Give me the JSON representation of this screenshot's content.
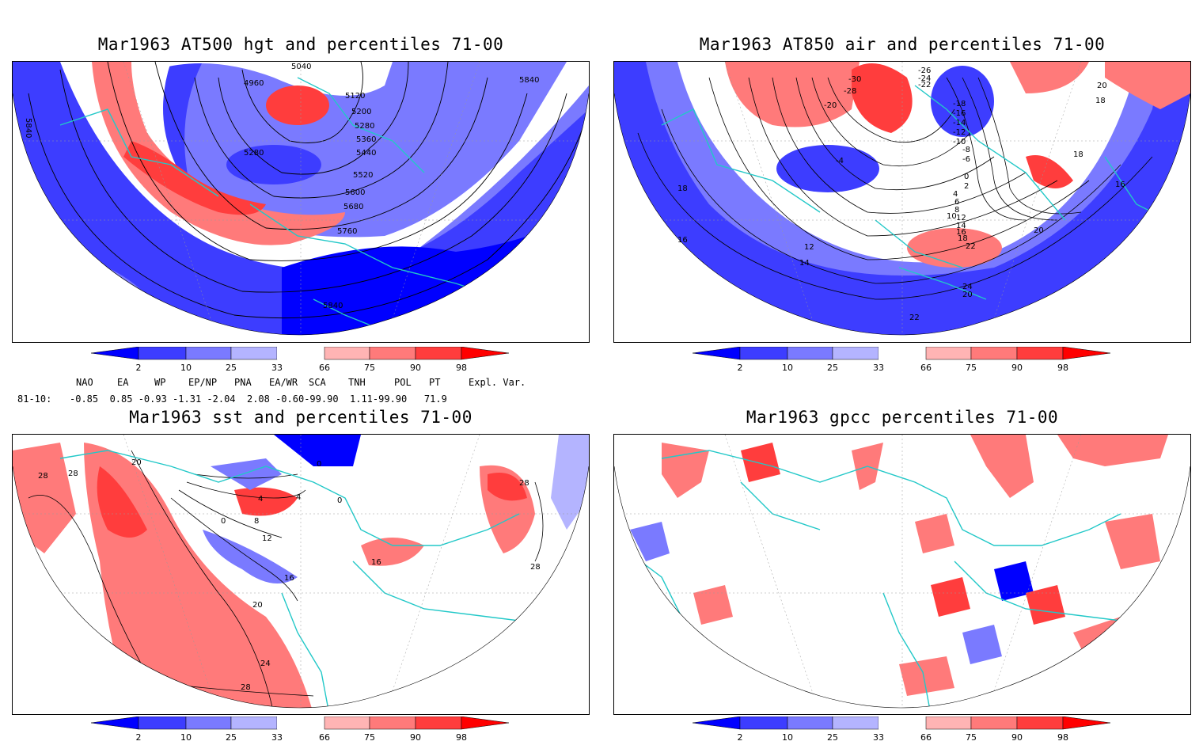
{
  "panels": [
    {
      "title": "Mar1963 AT500 hgt and percentiles 71-00",
      "contour_labels": [
        "5040",
        "4960",
        "5120",
        "5200",
        "5280",
        "5360",
        "5440",
        "5520",
        "5600",
        "5680",
        "5760",
        "5840",
        "5280",
        "5840",
        "5840"
      ]
    },
    {
      "title": "Mar1963 AT850 air and percentiles 71-00",
      "contour_labels": [
        "-26",
        "-24",
        "-22",
        "-30",
        "-28",
        "-20",
        "-18",
        "-16",
        "-14",
        "-12",
        "-10",
        "-8",
        "-6",
        "-4",
        "0",
        "2",
        "4",
        "6",
        "8",
        "10",
        "12",
        "14",
        "16",
        "18",
        "20",
        "22",
        "24",
        "20",
        "22",
        "18",
        "16",
        "18",
        "16",
        "12",
        "14",
        "18",
        "20"
      ]
    },
    {
      "title": "Mar1963 sst and percentiles 71-00",
      "contour_labels": [
        "28",
        "28",
        "20",
        "0",
        "4",
        "4",
        "8",
        "12",
        "16",
        "20",
        "24",
        "28",
        "16",
        "28",
        "28",
        "0",
        "0"
      ]
    },
    {
      "title": "Mar1963 gpcc percentiles 71-00",
      "contour_labels": []
    }
  ],
  "colorbar": {
    "labels": [
      "2",
      "10",
      "25",
      "33",
      "66",
      "75",
      "90",
      "98"
    ],
    "colors": [
      "#0000ff",
      "#3d3dff",
      "#7a7aff",
      "#b4b4ff",
      "#ffffff",
      "#ffb4b4",
      "#ff7a7a",
      "#ff3d3d",
      "#ff0000"
    ]
  },
  "teleconnections": {
    "headers": [
      "NAO",
      "EA",
      "WP",
      "EP/NP",
      "PNA",
      "EA/WR",
      "SCA",
      "TNH",
      "POL",
      "PT",
      "Expl. Var."
    ],
    "period": "81-10:",
    "values": "-0.85  0.85 -0.93 -1.31 -2.04  2.08 -0.60-99.90  1.11-99.90   71.9"
  },
  "colors": {
    "coastline": "#22c8c8",
    "contour": "#000000",
    "frame": "#000000"
  }
}
